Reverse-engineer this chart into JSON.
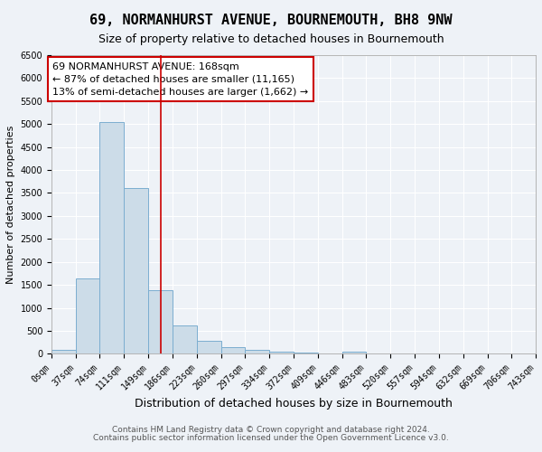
{
  "title": "69, NORMANHURST AVENUE, BOURNEMOUTH, BH8 9NW",
  "subtitle": "Size of property relative to detached houses in Bournemouth",
  "xlabel": "Distribution of detached houses by size in Bournemouth",
  "ylabel": "Number of detached properties",
  "bin_edges": [
    0,
    37,
    74,
    111,
    149,
    186,
    223,
    260,
    297,
    334,
    372,
    409,
    446,
    483,
    520,
    557,
    594,
    632,
    669,
    706,
    743
  ],
  "bar_heights": [
    80,
    1650,
    5050,
    3600,
    1380,
    610,
    290,
    145,
    90,
    55,
    30,
    15,
    55,
    0,
    0,
    0,
    0,
    0,
    0,
    0
  ],
  "bar_color": "#ccdce8",
  "bar_edge_color": "#7baed0",
  "vline_x": 168,
  "vline_color": "#cc0000",
  "annotation_text": "69 NORMANHURST AVENUE: 168sqm\n← 87% of detached houses are smaller (11,165)\n13% of semi-detached houses are larger (1,662) →",
  "annotation_box_color": "#ffffff",
  "annotation_box_edge": "#cc0000",
  "ylim": [
    0,
    6500
  ],
  "yticks": [
    0,
    500,
    1000,
    1500,
    2000,
    2500,
    3000,
    3500,
    4000,
    4500,
    5000,
    5500,
    6000,
    6500
  ],
  "footnote1": "Contains HM Land Registry data © Crown copyright and database right 2024.",
  "footnote2": "Contains public sector information licensed under the Open Government Licence v3.0.",
  "background_color": "#eef2f7",
  "grid_color": "#ffffff",
  "title_fontsize": 11,
  "subtitle_fontsize": 9,
  "xlabel_fontsize": 9,
  "ylabel_fontsize": 8,
  "tick_fontsize": 7,
  "annotation_fontsize": 8,
  "footnote_fontsize": 6.5
}
